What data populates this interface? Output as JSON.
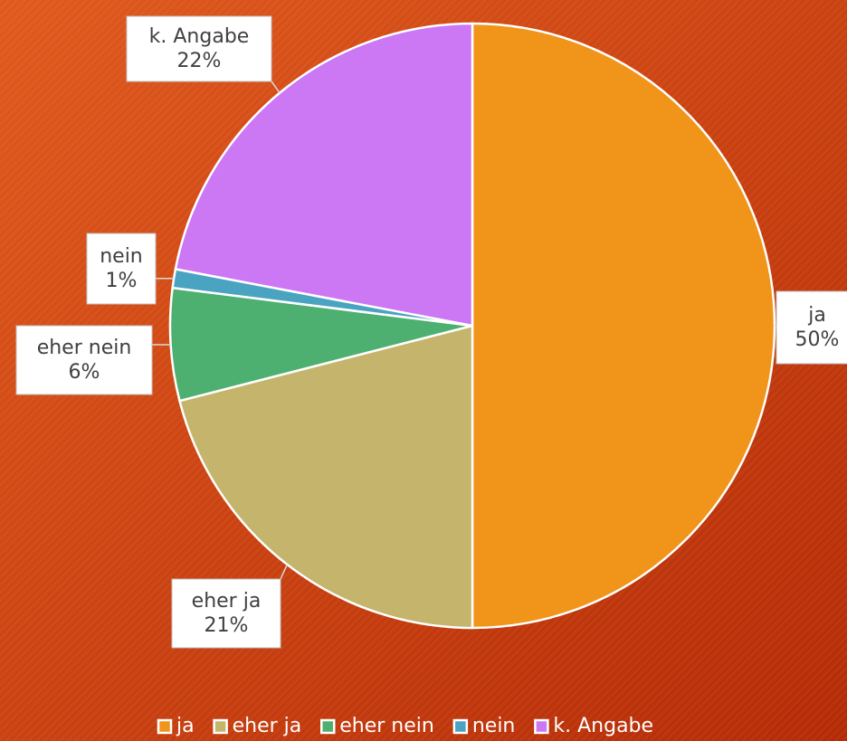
{
  "chart_data": {
    "type": "pie",
    "categories": [
      "ja",
      "eher ja",
      "eher nein",
      "nein",
      "k. Angabe"
    ],
    "values": [
      50,
      21,
      6,
      1,
      22
    ],
    "value_labels": [
      "50%",
      "21%",
      "6%",
      "1%",
      "22%"
    ],
    "colors": [
      "#f0941a",
      "#c4b46c",
      "#4db070",
      "#4aa3c0",
      "#cc77f4"
    ],
    "legend": "bottom"
  }
}
